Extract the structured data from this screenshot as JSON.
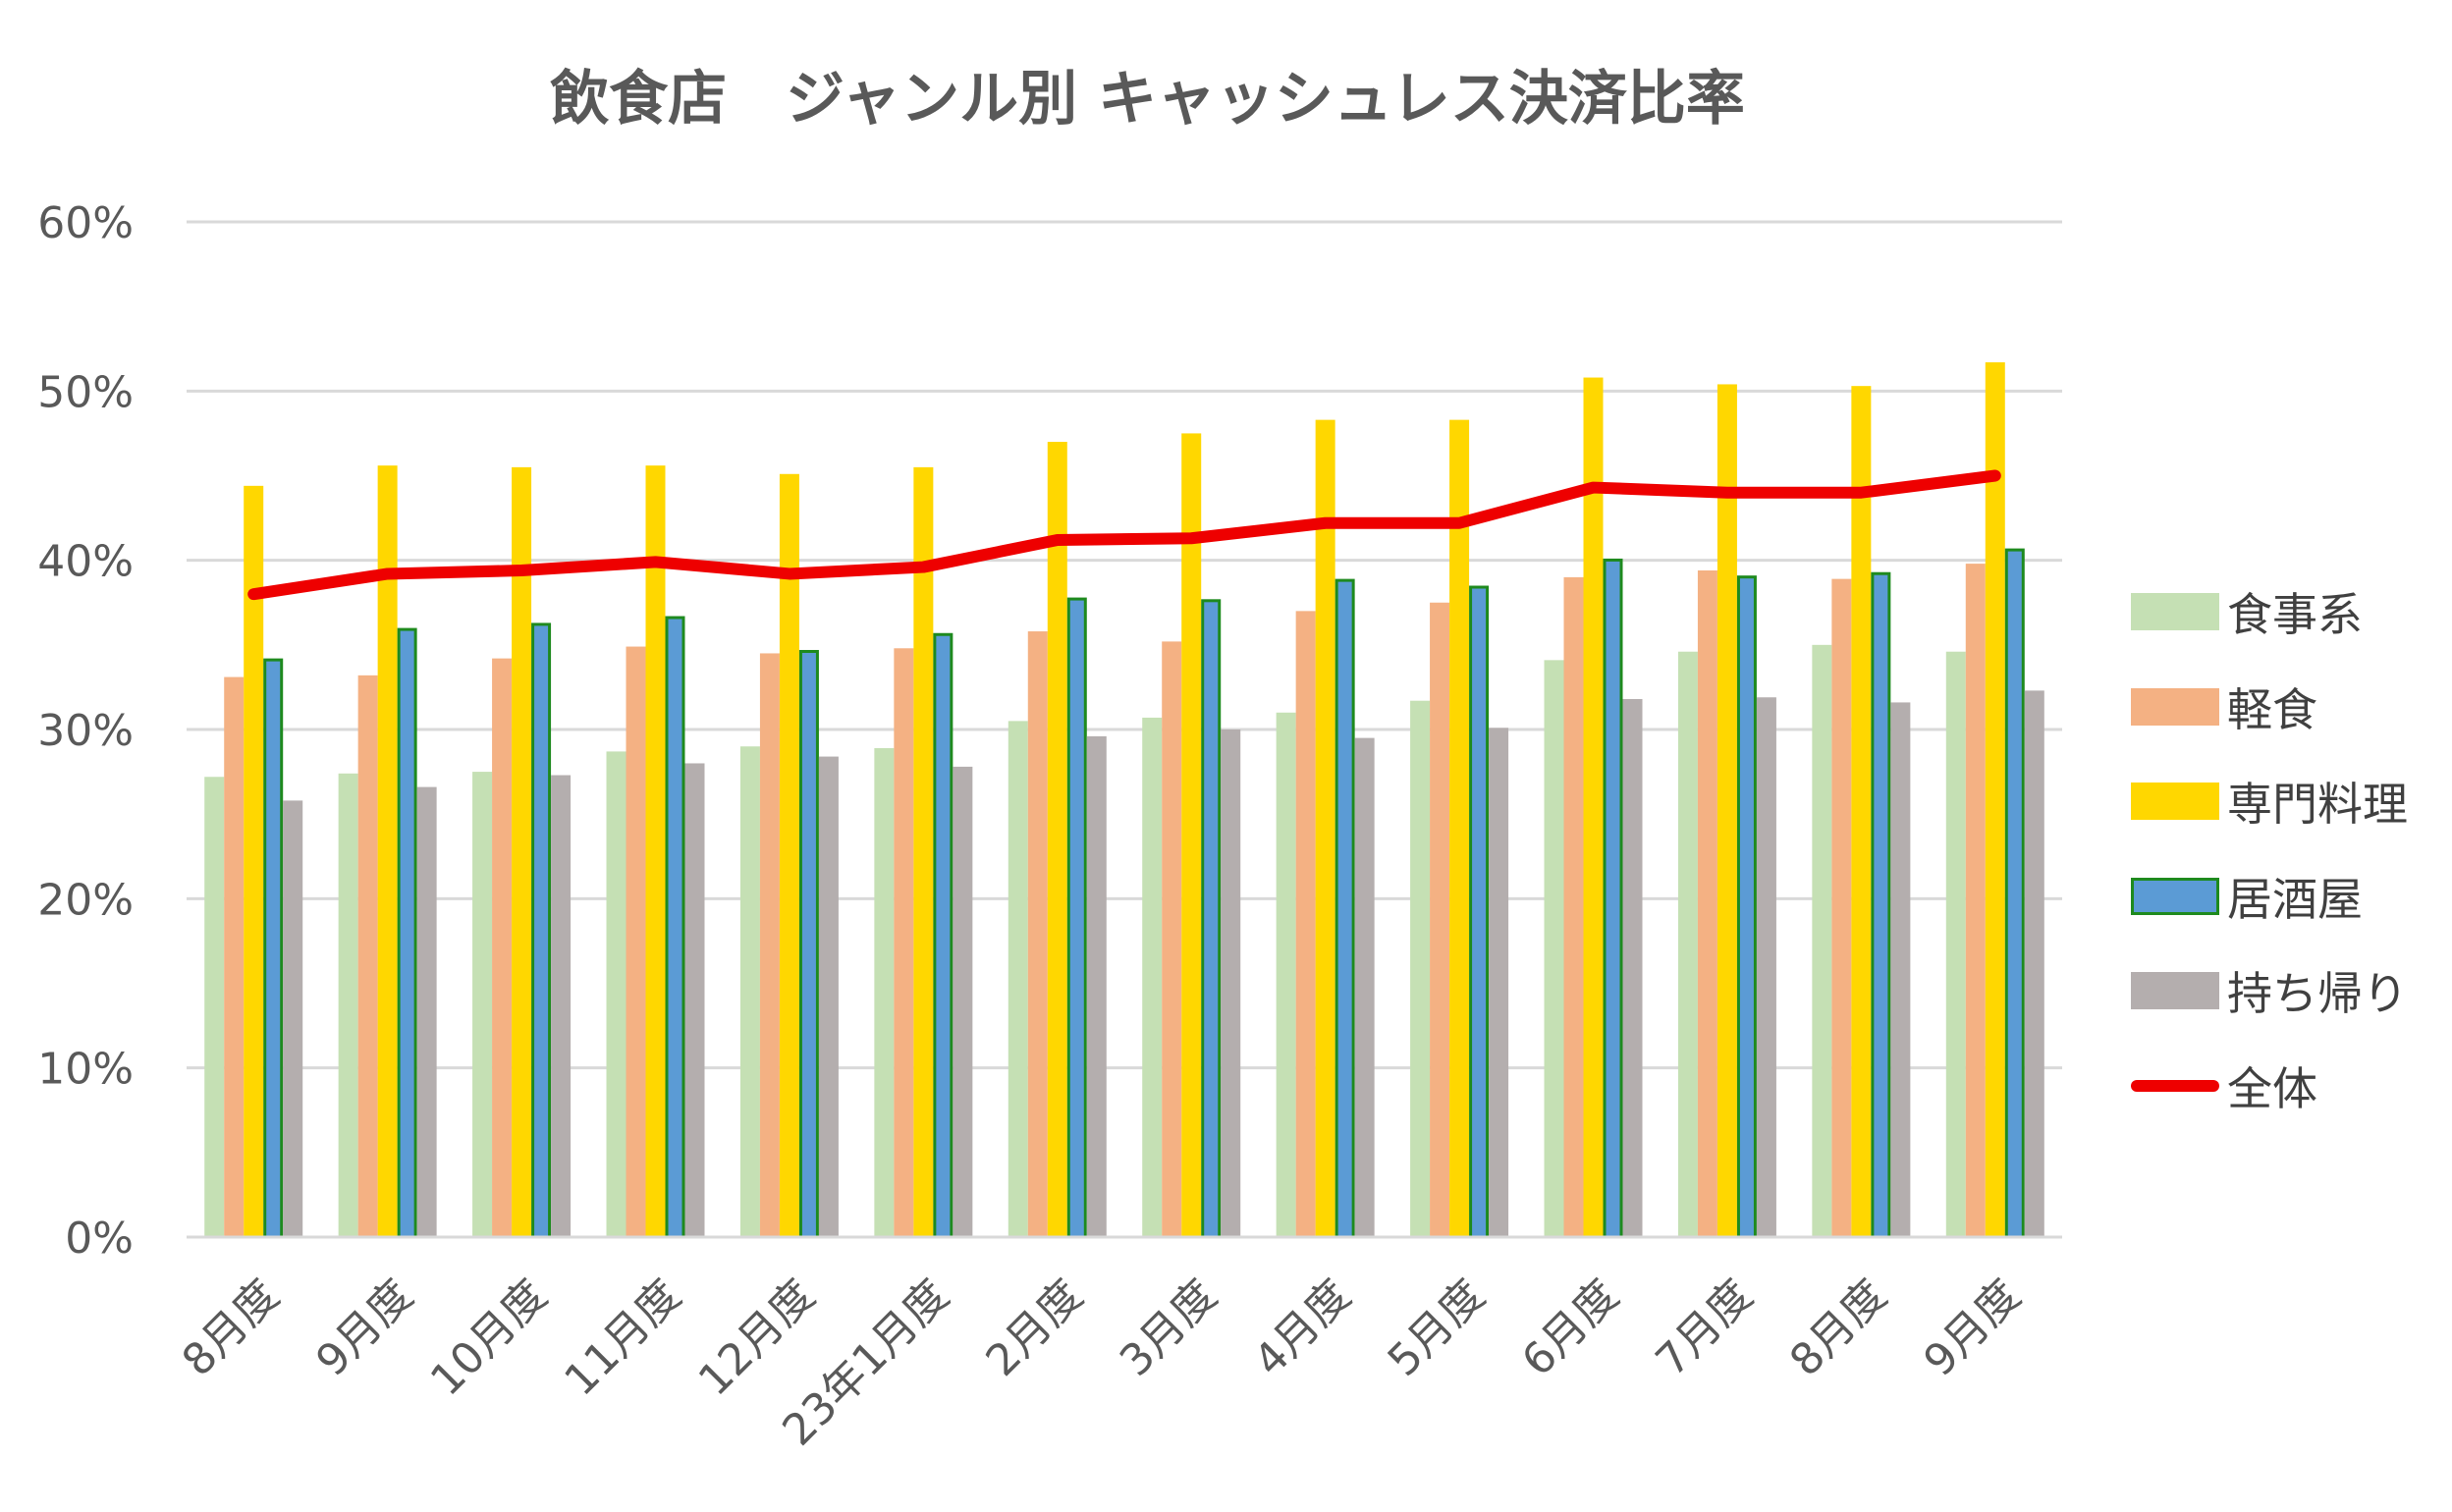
{
  "chart_data": {
    "type": "bar",
    "title": "飲食店　ジャンル別 キャッシュレス決済比率",
    "xlabel": "",
    "ylabel": "",
    "ylim": [
      0,
      60
    ],
    "yticks": [
      "0%",
      "10%",
      "20%",
      "30%",
      "40%",
      "50%",
      "60%"
    ],
    "categories": [
      "8月度",
      "9月度",
      "10月度",
      "11月度",
      "12月度",
      "23年1月度",
      "2月度",
      "3月度",
      "4月度",
      "5月度",
      "6月度",
      "7月度",
      "8月度",
      "9月度"
    ],
    "series": [
      {
        "name": "食事系",
        "kind": "bar",
        "color": "#c5e0b4",
        "values": [
          27.2,
          27.4,
          27.5,
          28.7,
          29.0,
          28.9,
          30.5,
          30.7,
          31.0,
          31.7,
          34.1,
          34.6,
          35.0,
          34.6
        ]
      },
      {
        "name": "軽食",
        "kind": "bar",
        "color": "#f4b183",
        "values": [
          33.1,
          33.2,
          34.2,
          34.9,
          34.5,
          34.8,
          35.8,
          35.2,
          37.0,
          37.5,
          39.0,
          39.4,
          38.9,
          39.8
        ]
      },
      {
        "name": "専門料理",
        "kind": "bar",
        "color": "#ffd700",
        "values": [
          44.4,
          45.6,
          45.5,
          45.6,
          45.1,
          45.5,
          47.0,
          47.5,
          48.3,
          48.3,
          50.8,
          50.4,
          50.3,
          51.7
        ]
      },
      {
        "name": "居酒屋",
        "kind": "bar",
        "color": "#5b9bd5",
        "border": "#1e8a1e",
        "values": [
          34.2,
          36.0,
          36.3,
          36.7,
          34.7,
          35.7,
          37.8,
          37.7,
          38.9,
          38.5,
          40.1,
          39.1,
          39.3,
          40.7
        ]
      },
      {
        "name": "持ち帰り",
        "kind": "bar",
        "color": "#b4aeae",
        "values": [
          25.8,
          26.6,
          27.3,
          28.0,
          28.4,
          27.8,
          29.6,
          30.0,
          29.5,
          30.1,
          31.8,
          31.9,
          31.6,
          32.3
        ]
      },
      {
        "name": "全体",
        "kind": "line",
        "color": "#ee0000",
        "values": [
          38.0,
          39.2,
          39.4,
          39.9,
          39.2,
          39.6,
          41.2,
          41.3,
          42.2,
          42.2,
          44.3,
          44.0,
          44.0,
          45.0
        ]
      }
    ],
    "legend_position": "right",
    "grid": true
  }
}
